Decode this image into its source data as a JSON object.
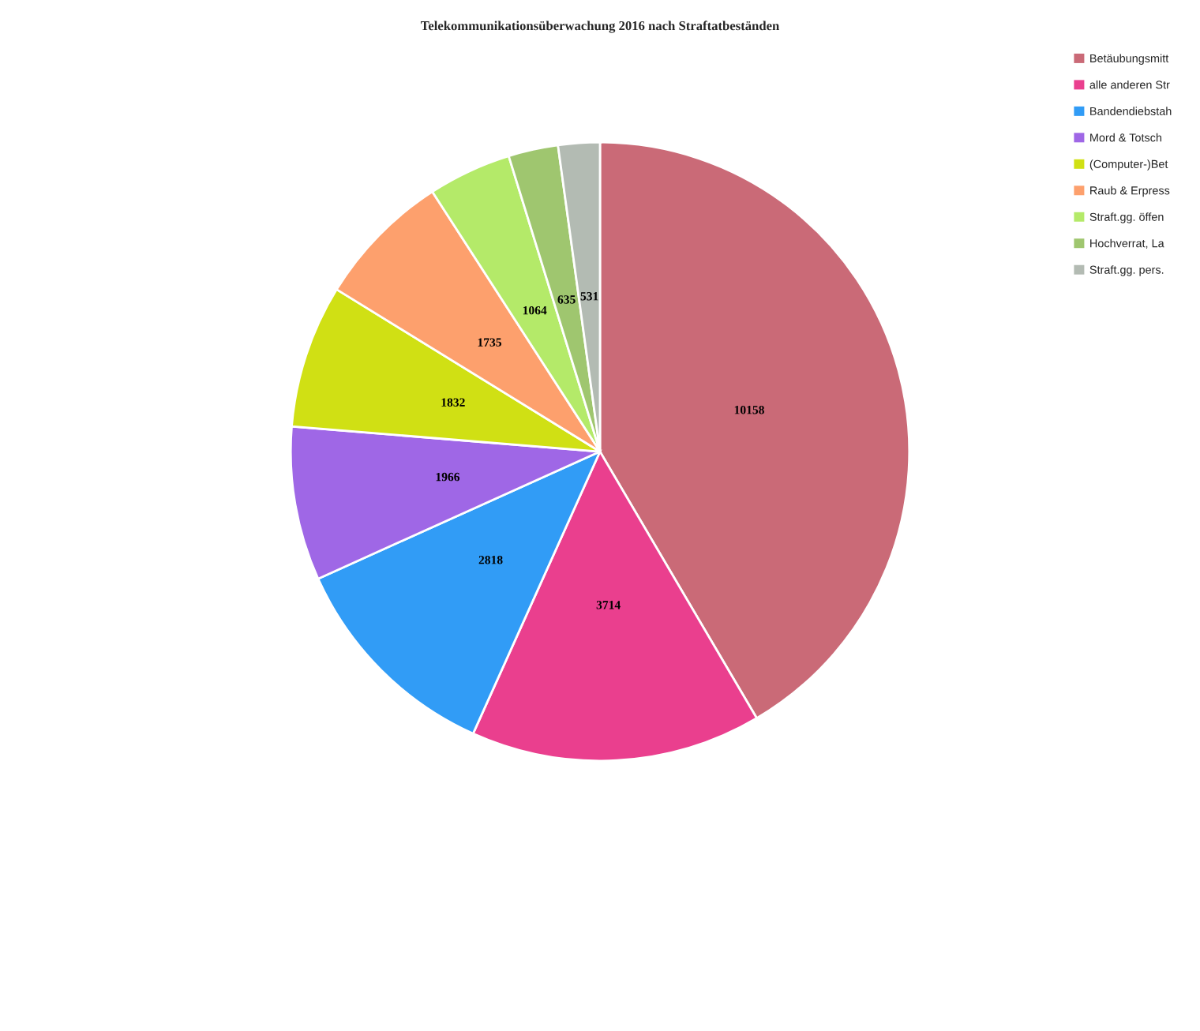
{
  "chart_data": {
    "type": "pie",
    "title": "Telekommunikationsüberwachung 2016 nach Straftatbeständen",
    "categories": [
      "Betäubungsmitt",
      "alle anderen Str",
      "Bandendiebstah",
      "Mord & Totsch",
      "(Computer-)Bet",
      "Raub & Erpress",
      "Straft.gg. öffen",
      "Hochverrat, La",
      "Straft.gg. pers."
    ],
    "values": [
      10158,
      3714,
      2818,
      1966,
      1832,
      1735,
      1064,
      635,
      531
    ],
    "colors": [
      "#ca6a77",
      "#ea3f8e",
      "#319cf6",
      "#9f67e6",
      "#d0e014",
      "#fda06d",
      "#b4ea69",
      "#9fc66f",
      "#b3bbb3"
    ],
    "data_labels": true,
    "legend": "top right"
  }
}
